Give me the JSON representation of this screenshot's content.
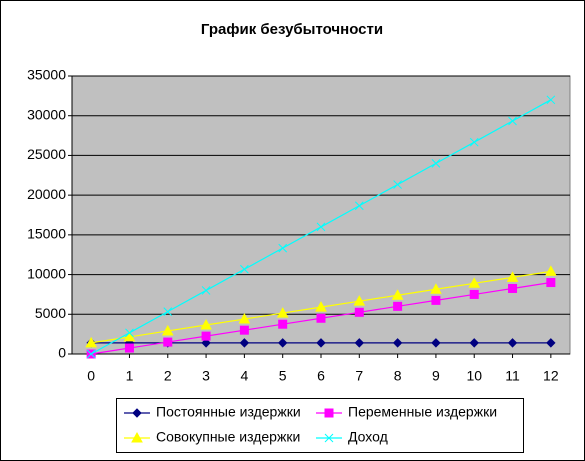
{
  "chart_data": {
    "type": "line",
    "title": "График безубыточности",
    "x": [
      0,
      1,
      2,
      3,
      4,
      5,
      6,
      7,
      8,
      9,
      10,
      11,
      12
    ],
    "xlim": [
      -0.5,
      12.5
    ],
    "xticks": [
      0,
      1,
      2,
      3,
      4,
      5,
      6,
      7,
      8,
      9,
      10,
      11,
      12
    ],
    "ylim": [
      0,
      35000
    ],
    "yticks": [
      0,
      5000,
      10000,
      15000,
      20000,
      25000,
      30000,
      35000
    ],
    "grid": true,
    "legend": "bottom",
    "series": [
      {
        "name": "Постоянные издержки",
        "color": "#000080",
        "marker": "diamond",
        "values": [
          1400,
          1400,
          1400,
          1400,
          1400,
          1400,
          1400,
          1400,
          1400,
          1400,
          1400,
          1400,
          1400
        ]
      },
      {
        "name": "Переменные издержки",
        "color": "#ff00ff",
        "marker": "square",
        "values": [
          0,
          750,
          1500,
          2250,
          3000,
          3750,
          4500,
          5250,
          6000,
          6750,
          7500,
          8250,
          9000
        ]
      },
      {
        "name": "Совокупные издержки",
        "color": "#ffff00",
        "marker": "triangle",
        "values": [
          1400,
          2150,
          2900,
          3650,
          4400,
          5150,
          5900,
          6650,
          7400,
          8150,
          8900,
          9650,
          10400
        ]
      },
      {
        "name": "Доход",
        "color": "#00ffff",
        "marker": "cross",
        "values": [
          0,
          2667,
          5333,
          8000,
          10667,
          13333,
          16000,
          18667,
          21333,
          24000,
          26667,
          29333,
          32000
        ]
      }
    ]
  }
}
